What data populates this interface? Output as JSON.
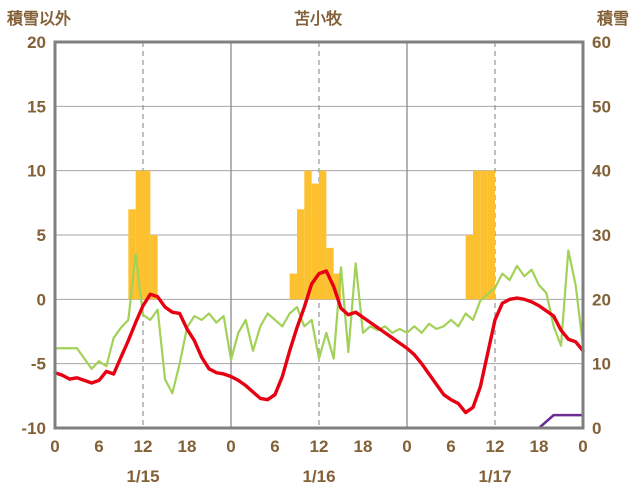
{
  "chart_data": {
    "type": "line",
    "title": "苫小牧",
    "left_axis_label": "積雪以外",
    "right_axis_label": "積雪",
    "left_range": [
      -10,
      20
    ],
    "right_range": [
      0,
      60
    ],
    "left_ticks": [
      20,
      15,
      10,
      5,
      0,
      -5,
      -10
    ],
    "right_ticks": [
      60,
      50,
      40,
      30,
      20,
      10,
      0
    ],
    "total_hours": 72,
    "hour_labels": [
      "0",
      "6",
      "12",
      "18"
    ],
    "final_hour_label": "0",
    "dates": [
      "1/15",
      "1/16",
      "1/17"
    ],
    "day_boundary_hours": [
      24,
      48
    ],
    "noon_hours": [
      12,
      36,
      60
    ],
    "legend_position": "none",
    "grid": true,
    "colors": {
      "text": "#826038",
      "frame": "#7f7f7f",
      "grid": "#a6a6a6",
      "grid_day": "#8a8a8a",
      "background": "#ffffff"
    },
    "series": {
      "sunshine": {
        "axis": "left",
        "color": "#fdc02f",
        "points": [
          {
            "hour": 10,
            "value": 7
          },
          {
            "hour": 11,
            "value": 10
          },
          {
            "hour": 12,
            "value": 10
          },
          {
            "hour": 13,
            "value": 5
          },
          {
            "hour": 32,
            "value": 2
          },
          {
            "hour": 33,
            "value": 7
          },
          {
            "hour": 34,
            "value": 10
          },
          {
            "hour": 35,
            "value": 9
          },
          {
            "hour": 36,
            "value": 10
          },
          {
            "hour": 37,
            "value": 4
          },
          {
            "hour": 38,
            "value": 2
          },
          {
            "hour": 56,
            "value": 5
          },
          {
            "hour": 57,
            "value": 10
          },
          {
            "hour": 58,
            "value": 10
          },
          {
            "hour": 59,
            "value": 10
          }
        ]
      },
      "temperature": {
        "axis": "left",
        "color": "#e60012",
        "values": [
          -5.7,
          -5.9,
          -6.2,
          -6.1,
          -6.3,
          -6.5,
          -6.3,
          -5.6,
          -5.8,
          -4.5,
          -3.2,
          -1.8,
          -0.5,
          0.4,
          0.2,
          -0.6,
          -1.0,
          -1.1,
          -2.3,
          -3.2,
          -4.5,
          -5.4,
          -5.7,
          -5.8,
          -6.0,
          -6.3,
          -6.7,
          -7.2,
          -7.7,
          -7.8,
          -7.4,
          -6.0,
          -4.0,
          -2.2,
          -0.6,
          1.2,
          2.0,
          2.2,
          1.0,
          -0.7,
          -1.2,
          -1.0,
          -1.4,
          -1.8,
          -2.2,
          -2.6,
          -3.0,
          -3.4,
          -3.8,
          -4.3,
          -5.0,
          -5.8,
          -6.6,
          -7.4,
          -7.8,
          -8.1,
          -8.8,
          -8.4,
          -6.8,
          -4.2,
          -1.6,
          -0.3,
          0.0,
          0.1,
          0.0,
          -0.2,
          -0.5,
          -0.9,
          -1.3,
          -2.4,
          -3.1,
          -3.3,
          -4.0
        ]
      },
      "wind": {
        "axis": "left",
        "color": "#a2d158",
        "values": [
          -3.8,
          -3.8,
          -3.8,
          -3.8,
          -4.6,
          -5.4,
          -4.8,
          -5.2,
          -3.0,
          -2.2,
          -1.6,
          3.5,
          -1.2,
          -1.6,
          -0.8,
          -6.2,
          -7.3,
          -5.0,
          -2.2,
          -1.3,
          -1.6,
          -1.1,
          -1.8,
          -1.3,
          -4.7,
          -2.6,
          -1.6,
          -4.0,
          -2.1,
          -1.1,
          -1.6,
          -2.1,
          -1.1,
          -0.6,
          -2.1,
          -1.6,
          -4.6,
          -2.6,
          -4.6,
          2.5,
          -4.1,
          2.8,
          -2.6,
          -2.1,
          -2.4,
          -2.1,
          -2.6,
          -2.3,
          -2.6,
          -2.1,
          -2.6,
          -1.9,
          -2.3,
          -2.1,
          -1.6,
          -2.1,
          -1.1,
          -1.6,
          -0.1,
          0.4,
          0.9,
          2.0,
          1.5,
          2.6,
          1.8,
          2.3,
          1.1,
          0.5,
          -2.1,
          -3.6,
          3.8,
          1.1,
          -3.6
        ]
      },
      "snow": {
        "axis": "right",
        "color": "#6a2d91",
        "values": [
          0,
          0,
          0,
          0,
          0,
          0,
          0,
          0,
          0,
          0,
          0,
          0,
          0,
          0,
          0,
          0,
          0,
          0,
          0,
          0,
          0,
          0,
          0,
          0,
          0,
          0,
          0,
          0,
          0,
          0,
          0,
          0,
          0,
          0,
          0,
          0,
          0,
          0,
          0,
          0,
          0,
          0,
          0,
          0,
          0,
          0,
          0,
          0,
          0,
          0,
          0,
          0,
          0,
          0,
          0,
          0,
          0,
          0,
          0,
          0,
          0,
          0,
          0,
          0,
          0,
          0,
          0,
          1,
          2,
          2,
          2,
          2,
          2
        ]
      }
    }
  }
}
